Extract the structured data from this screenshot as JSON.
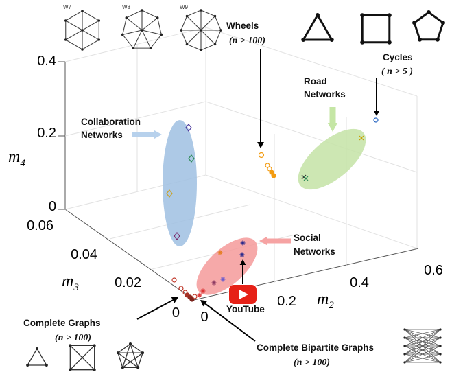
{
  "chart_data": {
    "type": "scatter3d",
    "axes": {
      "x": {
        "label": "m",
        "sub": "2",
        "ticks": [
          "0",
          "0.2",
          "0.4",
          "0.6"
        ]
      },
      "y": {
        "label": "m",
        "sub": "3",
        "ticks": [
          "0",
          "0.02",
          "0.04",
          "0.06"
        ]
      },
      "z": {
        "label": "m",
        "sub": "4",
        "ticks": [
          "0",
          "0.2",
          "0.4"
        ]
      }
    },
    "grid": true,
    "annotations": {
      "wheels": {
        "title": "Wheels",
        "cond": "(n > 100)"
      },
      "cycles": {
        "title": "Cycles",
        "cond": "( n > 5 )"
      },
      "road": {
        "line1": "Road",
        "line2": "Networks"
      },
      "collab": {
        "line1": "Collaboration",
        "line2": "Networks"
      },
      "social": {
        "line1": "Social",
        "line2": "Networks"
      },
      "complete": {
        "title": "Complete Graphs",
        "cond": "(n > 100)"
      },
      "bipartite": {
        "title": "Complete Bipartite Graphs",
        "cond": "(n > 100)"
      },
      "youtube": "YouTube"
    },
    "wheel_labels": [
      "W7",
      "W8",
      "W9"
    ],
    "colors": {
      "collab_cluster": "#9fc0e2",
      "road_cluster": "#c4e3a6",
      "social_cluster": "#f59a9a",
      "wheels_marker": "#f39c12",
      "youtube_red": "#e62117"
    }
  }
}
